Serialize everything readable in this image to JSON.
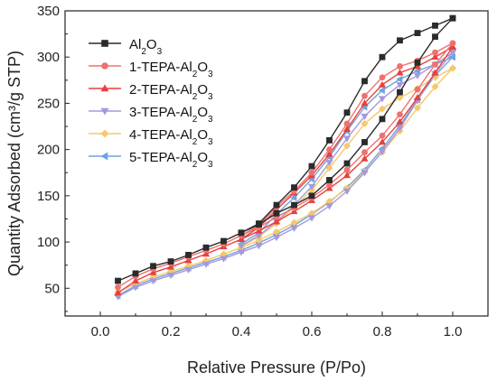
{
  "chart_data": {
    "type": "line",
    "title": "",
    "xlabel": "Relative Pressure (P/Po)",
    "ylabel": "Quantity Adsorbed (cm³/g STP)",
    "xlim": [
      -0.1,
      1.1
    ],
    "ylim": [
      20,
      350
    ],
    "xticks": [
      "0.0",
      "0.2",
      "0.4",
      "0.6",
      "0.8",
      "1.0"
    ],
    "xtick_values": [
      0.0,
      0.2,
      0.4,
      0.6,
      0.8,
      1.0
    ],
    "yticks": [
      "50",
      "100",
      "150",
      "200",
      "250",
      "300",
      "350"
    ],
    "ytick_values": [
      50,
      100,
      150,
      200,
      250,
      300,
      350
    ],
    "grid": false,
    "legend_position": "top-left",
    "series": [
      {
        "name": "Al₂O₃",
        "sub_base": "Al",
        "sub_mid": "2",
        "sub_o": "O",
        "sub_end": "3",
        "prefix": "",
        "color": "#2b2b2b",
        "marker": "square",
        "adsorption": {
          "x": [
            0.05,
            0.1,
            0.15,
            0.2,
            0.25,
            0.3,
            0.35,
            0.4,
            0.45,
            0.5,
            0.55,
            0.6,
            0.65,
            0.7,
            0.75,
            0.8,
            0.85,
            0.9,
            0.95,
            1.0
          ],
          "y": [
            58,
            66,
            74,
            79,
            86,
            94,
            101,
            110,
            119,
            131,
            140,
            150,
            167,
            185,
            208,
            233,
            262,
            294,
            322,
            342
          ]
        },
        "desorption": {
          "x": [
            1.0,
            0.95,
            0.9,
            0.85,
            0.8,
            0.75,
            0.7,
            0.65,
            0.6,
            0.55,
            0.5,
            0.45,
            0.4
          ],
          "y": [
            342,
            334,
            326,
            318,
            300,
            274,
            240,
            210,
            182,
            159,
            140,
            120,
            110
          ]
        }
      },
      {
        "name": "1-TEPA-Al₂O₃",
        "prefix": "1-TEPA-",
        "color": "#f07070",
        "marker": "circle",
        "adsorption": {
          "x": [
            0.05,
            0.1,
            0.15,
            0.2,
            0.25,
            0.3,
            0.35,
            0.4,
            0.45,
            0.5,
            0.55,
            0.6,
            0.65,
            0.7,
            0.75,
            0.8,
            0.85,
            0.9,
            0.95,
            1.0
          ],
          "y": [
            51,
            63,
            71,
            77,
            84,
            91,
            98,
            107,
            116,
            127,
            137,
            148,
            162,
            178,
            197,
            215,
            238,
            265,
            292,
            315
          ]
        },
        "desorption": {
          "x": [
            1.0,
            0.95,
            0.9,
            0.85,
            0.8,
            0.75,
            0.7,
            0.65,
            0.6,
            0.55,
            0.5,
            0.45,
            0.4
          ],
          "y": [
            315,
            305,
            296,
            290,
            278,
            258,
            228,
            200,
            175,
            155,
            138,
            118,
            107
          ]
        }
      },
      {
        "name": "2-TEPA-Al₂O₃",
        "prefix": "2-TEPA-",
        "color": "#e8413c",
        "marker": "triangle-up",
        "adsorption": {
          "x": [
            0.05,
            0.1,
            0.15,
            0.2,
            0.25,
            0.3,
            0.35,
            0.4,
            0.45,
            0.5,
            0.55,
            0.6,
            0.65,
            0.7,
            0.75,
            0.8,
            0.85,
            0.9,
            0.95,
            1.0
          ],
          "y": [
            45,
            58,
            67,
            73,
            80,
            87,
            95,
            103,
            112,
            122,
            133,
            145,
            158,
            172,
            190,
            208,
            230,
            256,
            283,
            311
          ]
        },
        "desorption": {
          "x": [
            1.0,
            0.95,
            0.9,
            0.85,
            0.8,
            0.75,
            0.7,
            0.65,
            0.6,
            0.55,
            0.5,
            0.45,
            0.4
          ],
          "y": [
            311,
            300,
            290,
            283,
            270,
            250,
            222,
            195,
            172,
            153,
            135,
            116,
            103
          ]
        }
      },
      {
        "name": "3-TEPA-Al₂O₃",
        "prefix": "3-TEPA-",
        "color": "#a698dc",
        "marker": "triangle-down",
        "adsorption": {
          "x": [
            0.05,
            0.1,
            0.15,
            0.2,
            0.25,
            0.3,
            0.35,
            0.4,
            0.45,
            0.5,
            0.55,
            0.6,
            0.65,
            0.7,
            0.75,
            0.8,
            0.85,
            0.9,
            0.95,
            1.0
          ],
          "y": [
            41,
            51,
            58,
            64,
            70,
            76,
            82,
            89,
            96,
            105,
            115,
            126,
            139,
            155,
            175,
            198,
            223,
            253,
            282,
            305
          ]
        },
        "desorption": {
          "x": [
            1.0,
            0.95,
            0.9,
            0.85,
            0.8,
            0.75,
            0.7,
            0.65,
            0.6,
            0.55,
            0.5,
            0.45,
            0.4
          ],
          "y": [
            305,
            292,
            280,
            270,
            255,
            236,
            212,
            186,
            160,
            140,
            122,
            107,
            96
          ]
        }
      },
      {
        "name": "4-TEPA-Al₂O₃",
        "prefix": "4-TEPA-",
        "color": "#f6c86a",
        "marker": "diamond",
        "adsorption": {
          "x": [
            0.05,
            0.1,
            0.15,
            0.2,
            0.25,
            0.3,
            0.35,
            0.4,
            0.45,
            0.5,
            0.55,
            0.6,
            0.65,
            0.7,
            0.75,
            0.8,
            0.85,
            0.9,
            0.95,
            1.0
          ],
          "y": [
            46,
            55,
            62,
            68,
            74,
            80,
            87,
            94,
            102,
            111,
            121,
            131,
            144,
            158,
            176,
            197,
            220,
            245,
            268,
            288
          ]
        },
        "desorption": {
          "x": [
            1.0,
            0.95,
            0.9,
            0.85,
            0.8,
            0.75,
            0.7,
            0.65,
            0.6,
            0.55,
            0.5,
            0.45,
            0.4
          ],
          "y": [
            288,
            278,
            266,
            256,
            244,
            228,
            204,
            180,
            156,
            138,
            120,
            106,
            95
          ]
        }
      },
      {
        "name": "5-TEPA-Al₂O₃",
        "prefix": "5-TEPA-",
        "color": "#6fa3dc",
        "marker": "left-triangle",
        "adsorption": {
          "x": [
            0.05,
            0.1,
            0.15,
            0.2,
            0.25,
            0.3,
            0.35,
            0.4,
            0.45,
            0.5,
            0.55,
            0.6,
            0.65,
            0.7,
            0.75,
            0.8,
            0.85,
            0.9,
            0.95,
            1.0
          ],
          "y": [
            42,
            53,
            60,
            66,
            72,
            78,
            84,
            91,
            99,
            108,
            118,
            130,
            143,
            159,
            178,
            201,
            226,
            254,
            280,
            300
          ]
        },
        "desorption": {
          "x": [
            1.0,
            0.95,
            0.9,
            0.85,
            0.8,
            0.75,
            0.7,
            0.65,
            0.6,
            0.55,
            0.5,
            0.45,
            0.4
          ],
          "y": [
            300,
            292,
            285,
            276,
            264,
            246,
            220,
            192,
            168,
            148,
            130,
            110,
            98
          ]
        }
      }
    ]
  }
}
